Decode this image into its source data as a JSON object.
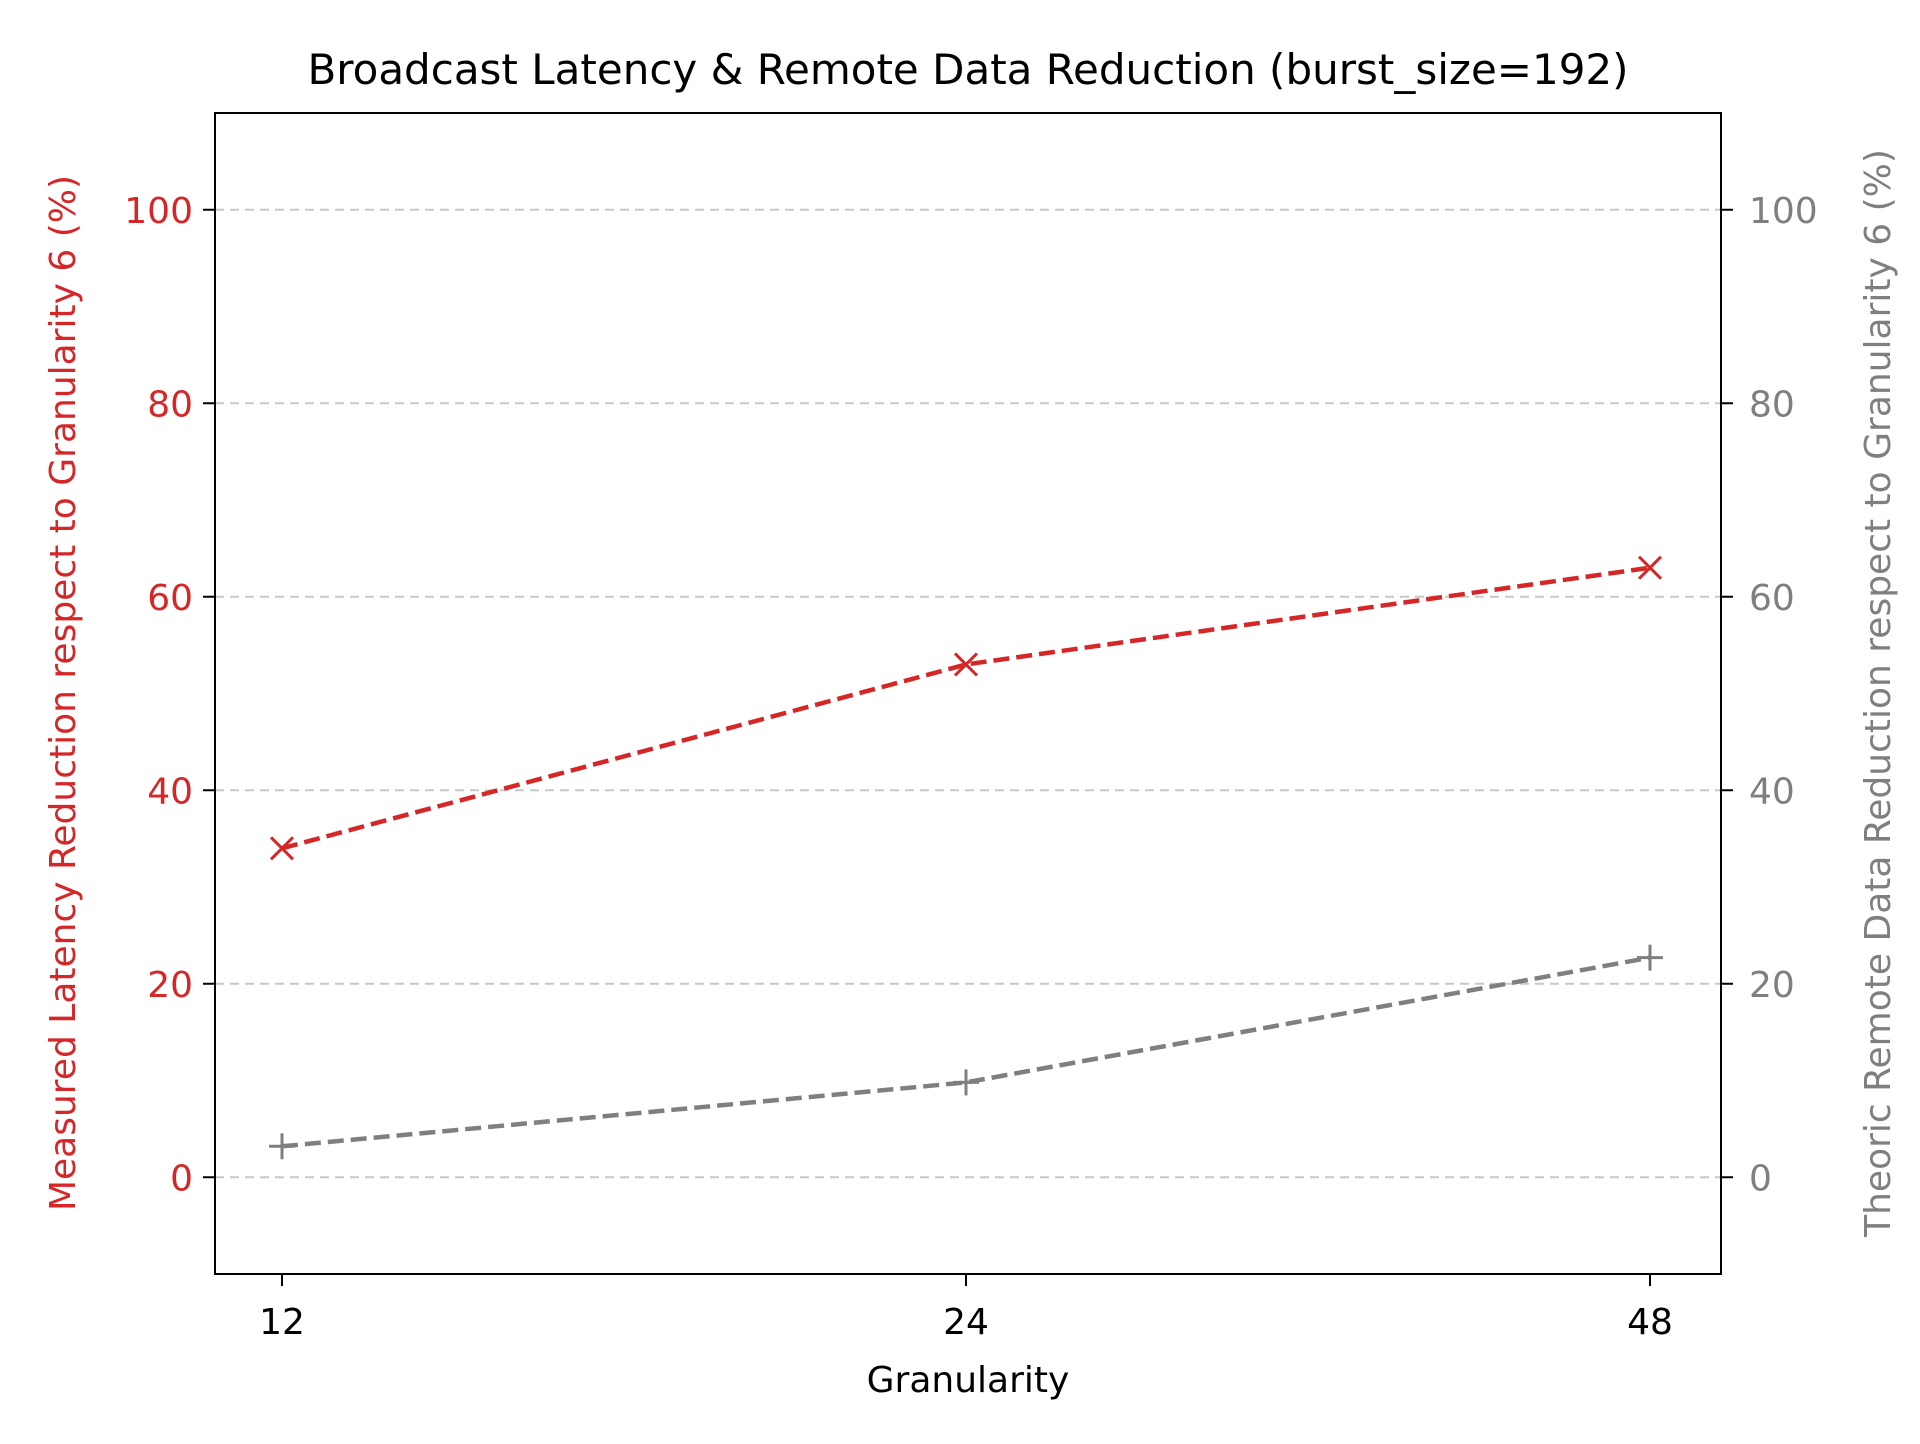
{
  "chart_data": {
    "type": "line",
    "title": "Broadcast Latency & Remote Data Reduction (burst_size=192)",
    "xlabel": "Granularity",
    "ylabel_left": "Measured Latency Reduction respect to Granularity 6 (%)",
    "ylabel_right": "Theoric Remote Data Reduction respect to Granularity 6 (%)",
    "categories": [
      "12",
      "24",
      "48"
    ],
    "ylim": [
      -10,
      110
    ],
    "yticks": [
      0,
      20,
      40,
      60,
      80,
      100
    ],
    "grid": "horizontal-dashed",
    "series": [
      {
        "values": [
          34,
          53,
          63
        ],
        "axis": "left",
        "color": "#d62728",
        "marker": "x",
        "linestyle": "dashed"
      },
      {
        "values": [
          3.2,
          9.8,
          22.7
        ],
        "axis": "right",
        "color": "#7f7f7f",
        "marker": "+",
        "linestyle": "dashed"
      }
    ],
    "colors": {
      "left_axis": "#d62728",
      "right_axis": "#7f7f7f",
      "grid": "#c8c8c8",
      "frame": "#000000"
    }
  }
}
